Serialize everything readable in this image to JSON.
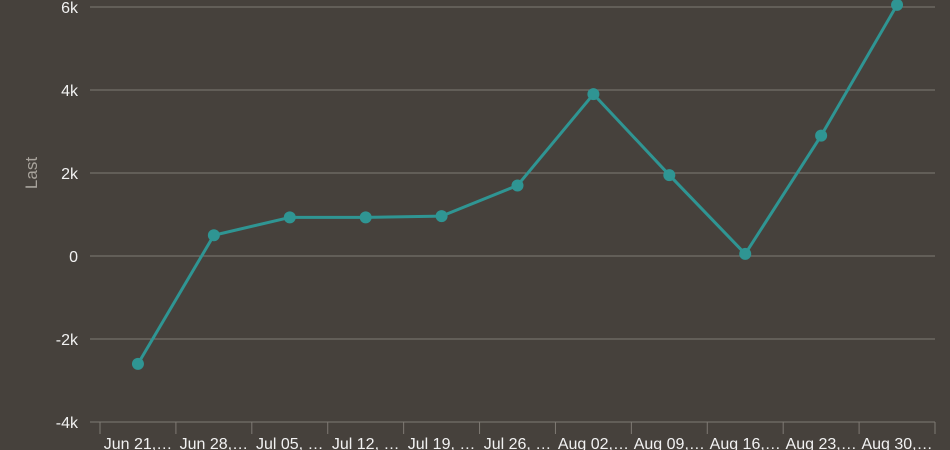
{
  "chart_data": {
    "type": "line",
    "title": "",
    "xlabel": "",
    "ylabel": "Last",
    "categories": [
      "Jun 21,…",
      "Jun 28,…",
      "Jul 05, …",
      "Jul 12, …",
      "Jul 19, …",
      "Jul 26, …",
      "Aug 02,…",
      "Aug 09,…",
      "Aug 16,…",
      "Aug 23,…",
      "Aug 30,…"
    ],
    "series": [
      {
        "values": [
          -2600,
          500,
          930,
          930,
          960,
          1700,
          3900,
          1950,
          50,
          2900,
          6050
        ]
      }
    ],
    "ylim": [
      -4000,
      6000
    ],
    "yticks": [
      -4000,
      -2000,
      0,
      2000,
      4000,
      6000
    ],
    "ytick_labels": [
      "-4k",
      "-2k",
      "0",
      "2k",
      "4k",
      "6k"
    ],
    "grid": true,
    "legend": "none"
  },
  "colors": {
    "background": "#46413c",
    "line": "#2f9593",
    "grid": "#7f7a74",
    "text": "#f2f2f2",
    "axis_title": "#a8a39c"
  }
}
